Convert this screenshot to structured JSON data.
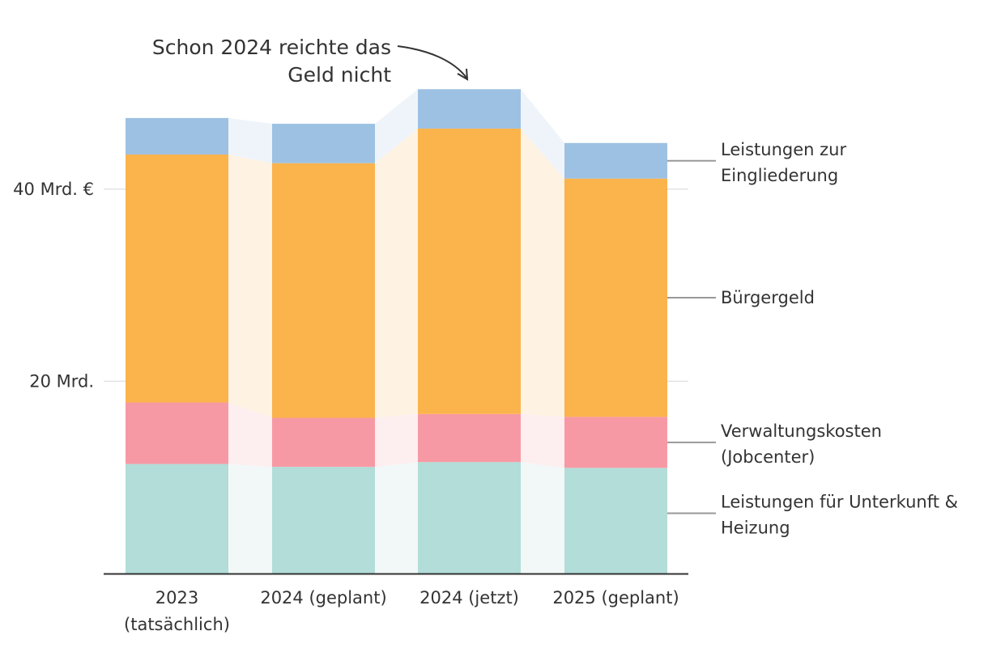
{
  "chart_data": {
    "type": "bar",
    "stacked": true,
    "title": "",
    "xlabel": "",
    "ylabel": "",
    "ylim": [
      0,
      50.5
    ],
    "y_ticks": [
      {
        "value": 20,
        "label": "20 Mrd."
      },
      {
        "value": 40,
        "label": "40 Mrd. €"
      }
    ],
    "grid": true,
    "categories": [
      {
        "line1": "2023",
        "line2": "(tatsächlich)"
      },
      {
        "line1": "2024 (geplant)",
        "line2": ""
      },
      {
        "line1": "2024 (jetzt)",
        "line2": ""
      },
      {
        "line1": "2025 (geplant)",
        "line2": ""
      }
    ],
    "series": [
      {
        "name_line1": "Leistungen für Unterkunft &",
        "name_line2": "Heizung",
        "color": "#b2ddd8",
        "band_color": "#f2f8f7",
        "values": [
          11.4,
          11.1,
          11.6,
          11.0
        ]
      },
      {
        "name_line1": "Verwaltungskosten",
        "name_line2": "(Jobcenter)",
        "color": "#f799a4",
        "band_color": "#fdeef0",
        "values": [
          6.4,
          5.1,
          5.0,
          5.3
        ]
      },
      {
        "name_line1": "Bürgergeld",
        "name_line2": "",
        "color": "#fbb34c",
        "band_color": "#fef2e3",
        "values": [
          25.8,
          26.5,
          29.7,
          24.8
        ]
      },
      {
        "name_line1": "Leistungen zur",
        "name_line2": "Eingliederung",
        "color": "#9dc1e2",
        "band_color": "#eff4fb",
        "values": [
          3.8,
          4.1,
          4.1,
          3.7
        ]
      }
    ],
    "annotation": {
      "line1": "Schon 2024 reichte das",
      "line2": "Geld nicht"
    }
  }
}
